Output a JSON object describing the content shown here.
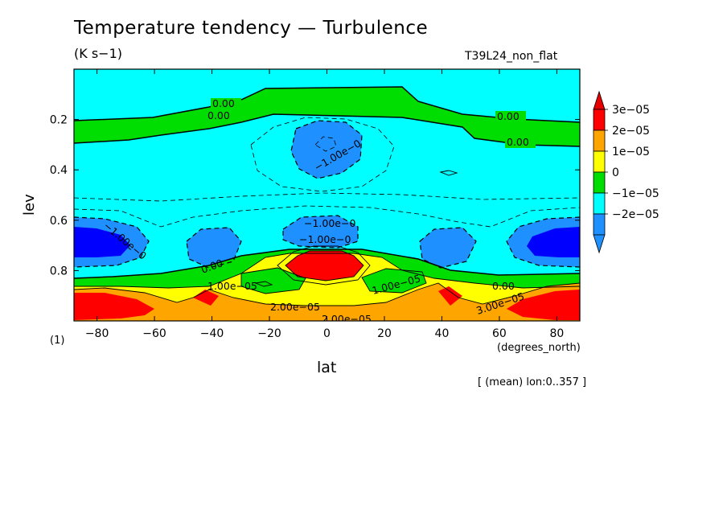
{
  "chart_data": {
    "type": "contour",
    "title": "Temperature tendency — Turbulence",
    "units": "(K s−1)",
    "run_name": "T39L24_non_flat",
    "xlabel": "lat",
    "x_units": "(degrees_north)",
    "ylabel": "lev",
    "lev_note": "(1)",
    "subnote": "[ (mean) lon:0..357 ]",
    "xlim": [
      -88,
      88
    ],
    "ylim": [
      0.0,
      1.0
    ],
    "y_axis": "inverted",
    "x_ticks": [
      -80,
      -60,
      -40,
      -20,
      0,
      20,
      40,
      60,
      80
    ],
    "x_tick_labels": [
      "−80",
      "−60",
      "−40",
      "−20",
      "0",
      "20",
      "40",
      "60",
      "80"
    ],
    "y_ticks": [
      0.2,
      0.4,
      0.6,
      0.8
    ],
    "y_tick_labels": [
      "0.2",
      "0.4",
      "0.6",
      "0.8"
    ],
    "contour_levels": [
      -2e-05,
      -1e-05,
      0,
      1e-05,
      2e-05,
      3e-05
    ],
    "colorbar": {
      "labels": [
        "3e−05",
        "2e−05",
        "1e−05",
        "0",
        "−1e−05",
        "−2e−05"
      ],
      "colors": [
        "#ff0000",
        "#ffa500",
        "#ffff00",
        "#00dd00",
        "#00ffff",
        "#1e90ff",
        "#1e90ff",
        "#e60000"
      ]
    },
    "contour_labels": [
      "0.00",
      "0.00",
      "0.00",
      "0.00",
      "−1.00e−0",
      "−1.00e−0",
      "−1.00e−0",
      "−1.00e−0",
      "0.00",
      "1.00e−05",
      "1.00e−05",
      "0.00",
      "2.00e−05",
      "3.00e−05",
      "2.00e−05"
    ],
    "fill_colors": {
      "lt_-2e-05": "#0000ff",
      "-2e-05_-1e-05": "#1e90ff",
      "-1e-05_0": "#00ffff",
      "0_1e-05": "#00dd00",
      "1e-05_2e-05": "#ffff00",
      "2e-05_3e-05": "#ffa500",
      "gt_3e-05": "#ff0000"
    }
  }
}
